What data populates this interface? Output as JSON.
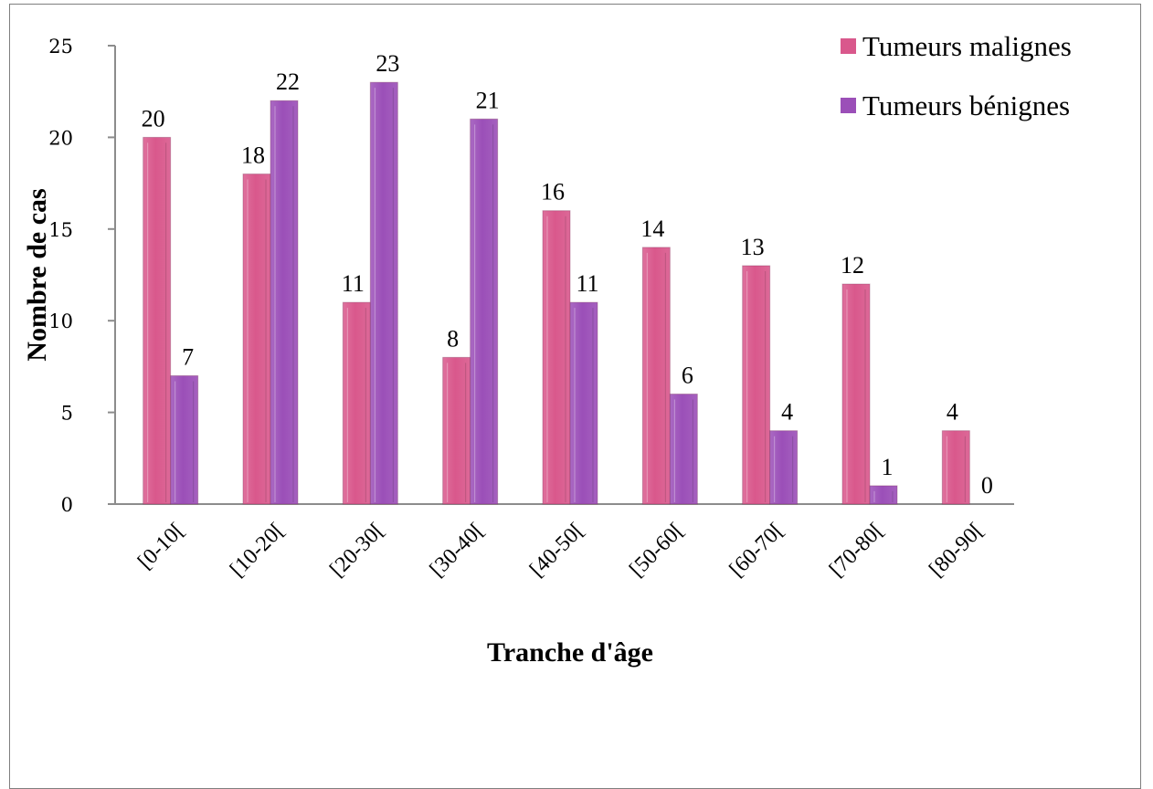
{
  "chart_data": {
    "type": "bar",
    "categories": [
      "[0-10[",
      "[10-20[",
      "[20-30[",
      "[30-40[",
      "[40-50[",
      "[50-60[",
      "[60-70[",
      "[70-80[",
      "[80-90["
    ],
    "series": [
      {
        "name": "Tumeurs malignes",
        "values": [
          20,
          18,
          11,
          8,
          16,
          14,
          13,
          12,
          4
        ],
        "color": "#d9588c"
      },
      {
        "name": "Tumeurs bénignes",
        "values": [
          7,
          22,
          23,
          21,
          11,
          6,
          4,
          1,
          0
        ],
        "color": "#9b4fb8"
      }
    ],
    "xlabel": "Tranche d'âge",
    "ylabel": "Nombre de cas",
    "ylim": [
      0,
      25
    ],
    "yticks": [
      "0",
      "5",
      "10",
      "15",
      "20",
      "25"
    ],
    "grid": false,
    "legend_position": "top-right"
  }
}
